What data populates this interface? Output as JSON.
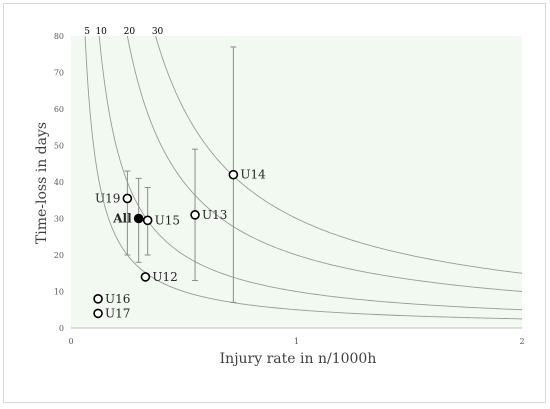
{
  "chart_data": {
    "type": "scatter",
    "xlabel": "Injury rate in n/1000h",
    "ylabel": "Time-loss in days",
    "xlim": [
      0,
      2
    ],
    "ylim": [
      0,
      80
    ],
    "x_ticks": [
      "0",
      "1",
      "2"
    ],
    "y_ticks": [
      "0",
      "10",
      "20",
      "30",
      "40",
      "50",
      "60",
      "70",
      "80"
    ],
    "grid": false,
    "plot_background": "#f2f9f1",
    "iso_curves": [
      {
        "label": "5",
        "product": 5
      },
      {
        "label": "10",
        "product": 10
      },
      {
        "label": "20",
        "product": 20
      },
      {
        "label": "30",
        "product": 30
      }
    ],
    "points": [
      {
        "label": "U19",
        "x": 0.25,
        "y": 35.5,
        "err_low": 20,
        "err_high": 43,
        "filled": false,
        "label_side": "left"
      },
      {
        "label": "All",
        "x": 0.3,
        "y": 30,
        "err_low": 18,
        "err_high": 41,
        "filled": true,
        "label_side": "left"
      },
      {
        "label": "U15",
        "x": 0.34,
        "y": 29.5,
        "err_low": 20,
        "err_high": 38.5,
        "filled": false,
        "label_side": "right"
      },
      {
        "label": "U13",
        "x": 0.55,
        "y": 31,
        "err_low": 13,
        "err_high": 49,
        "filled": false,
        "label_side": "right"
      },
      {
        "label": "U14",
        "x": 0.72,
        "y": 42,
        "err_low": 7,
        "err_high": 77,
        "filled": false,
        "label_side": "right"
      },
      {
        "label": "U12",
        "x": 0.33,
        "y": 14,
        "filled": false,
        "label_side": "right"
      },
      {
        "label": "U16",
        "x": 0.12,
        "y": 8,
        "filled": false,
        "label_side": "right"
      },
      {
        "label": "U17",
        "x": 0.12,
        "y": 4,
        "filled": false,
        "label_side": "right"
      }
    ]
  }
}
